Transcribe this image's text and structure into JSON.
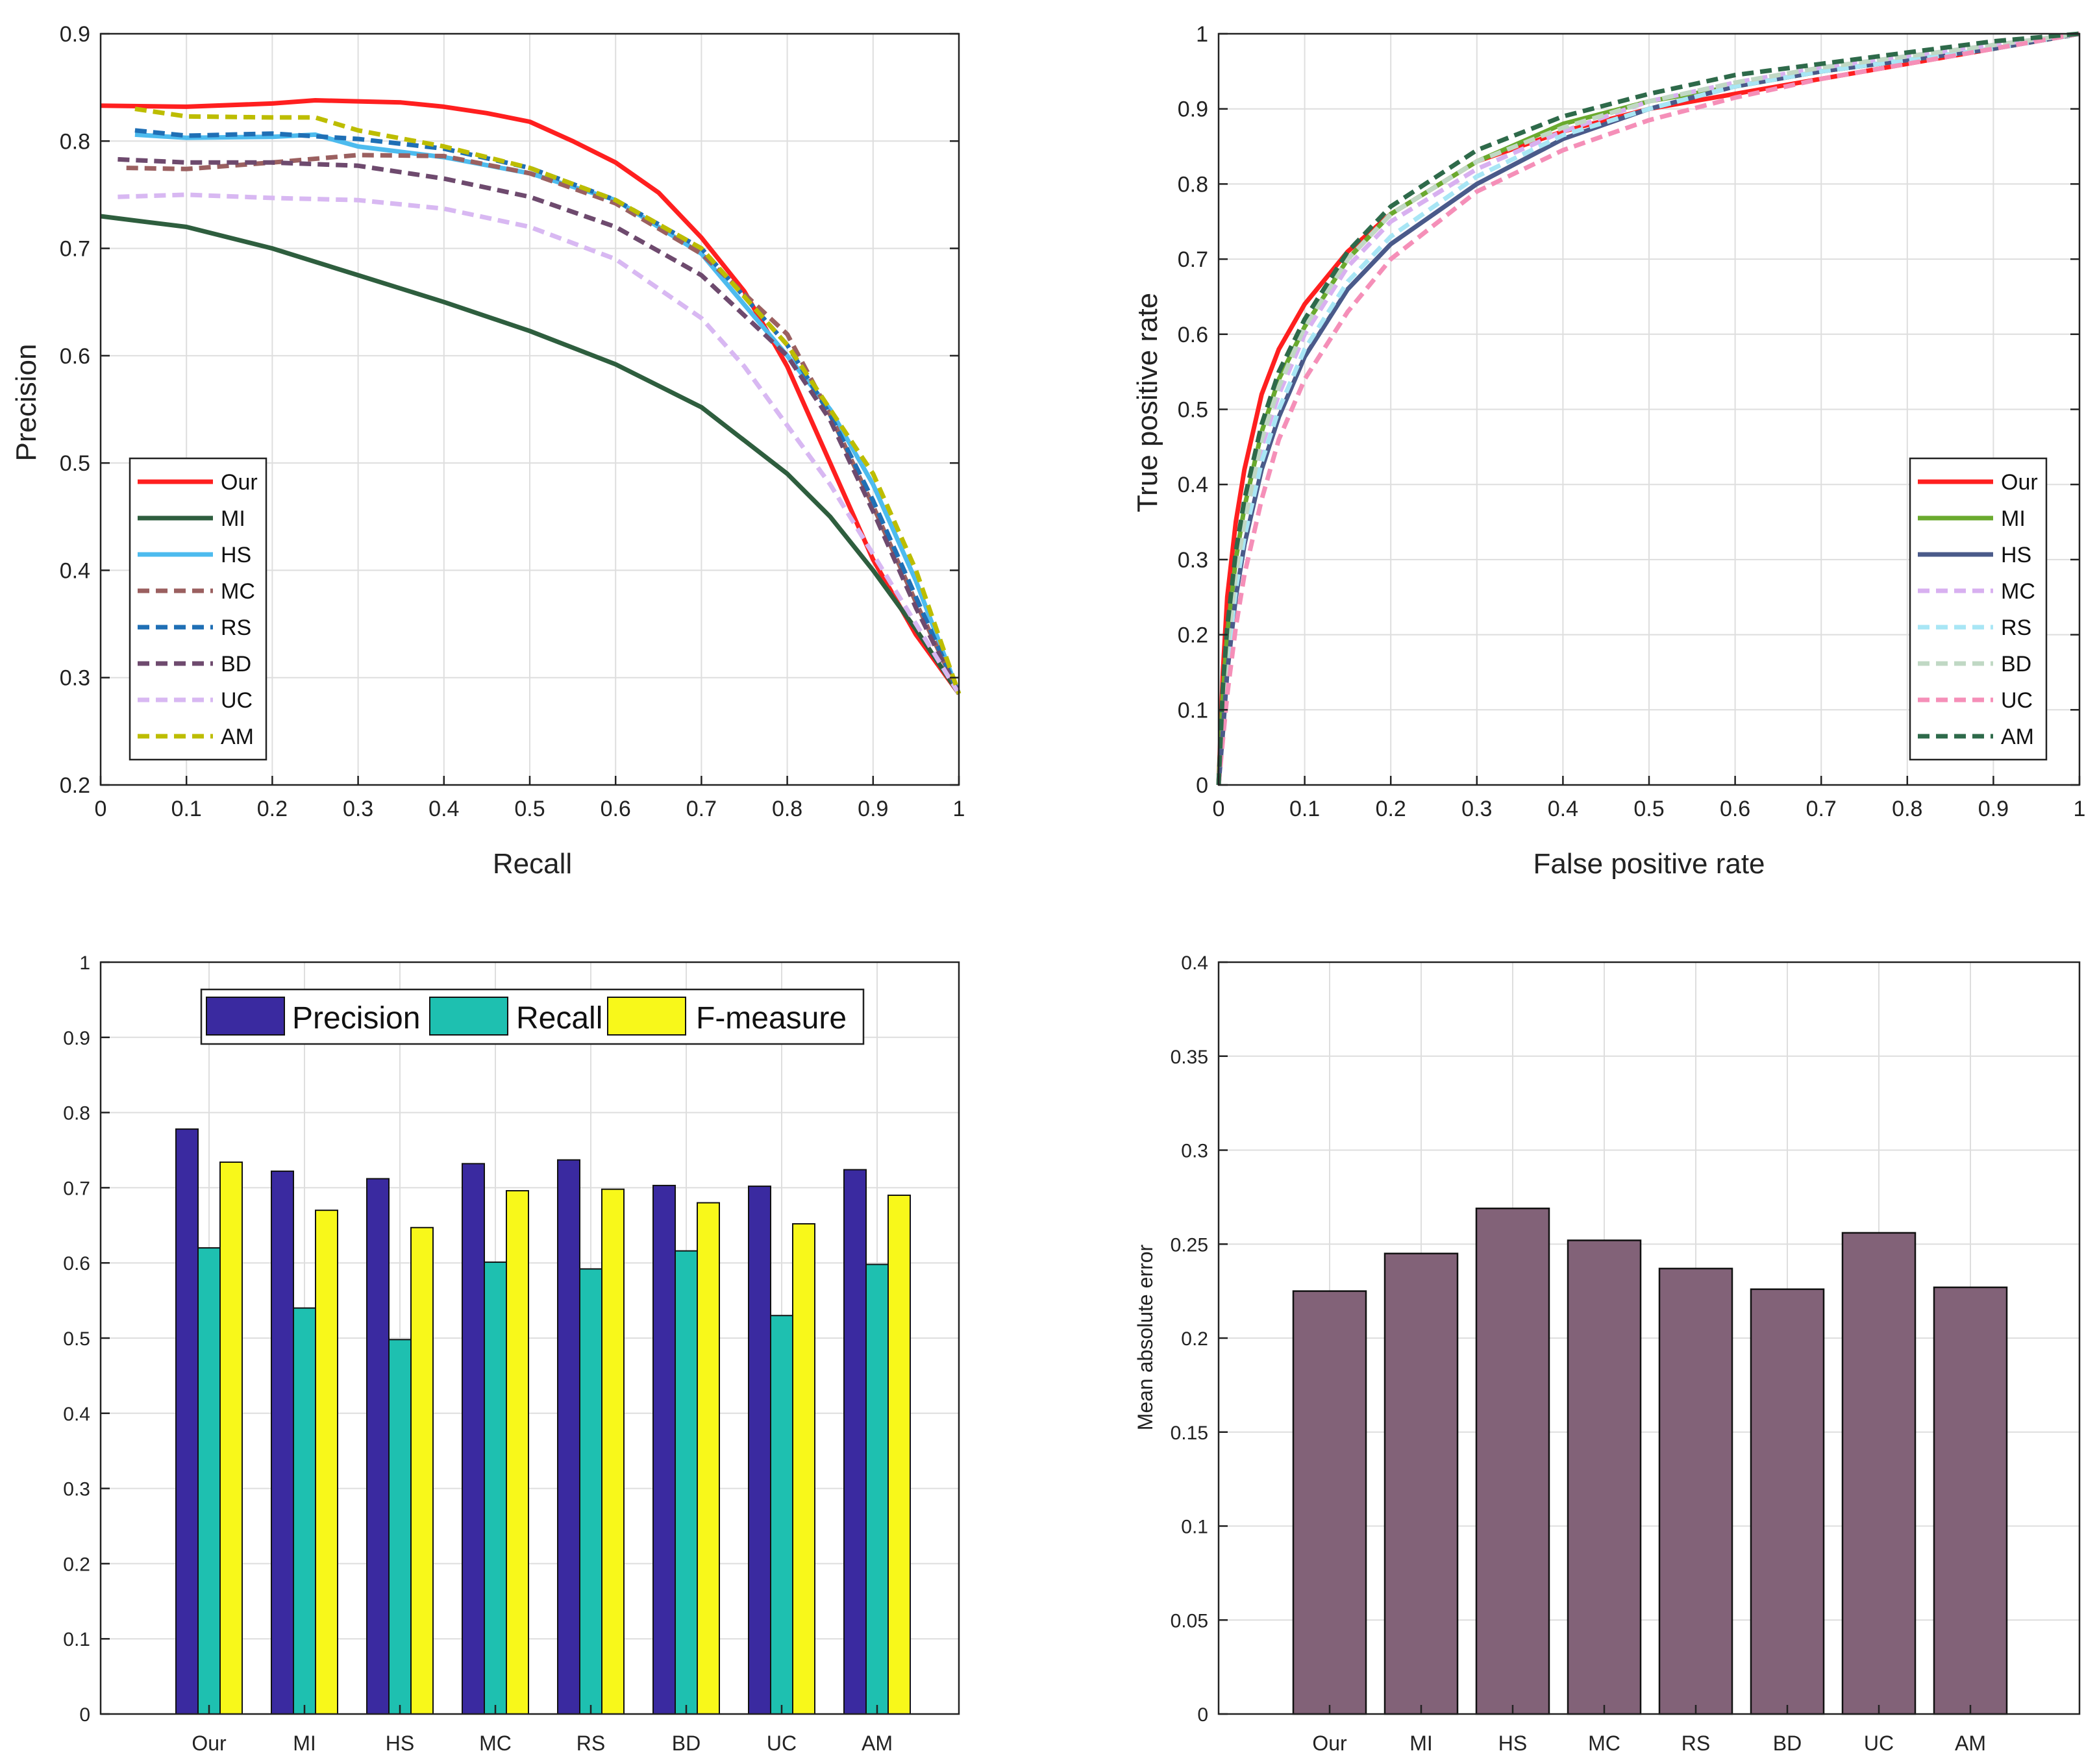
{
  "chart_data": [
    {
      "type": "line",
      "title": "",
      "xlabel": "Recall",
      "ylabel": "Precision",
      "xlim": [
        0,
        1
      ],
      "ylim": [
        0.2,
        0.9
      ],
      "xticks": [
        "0",
        "0.1",
        "0.2",
        "0.3",
        "0.4",
        "0.5",
        "0.6",
        "0.7",
        "0.8",
        "0.9",
        "1"
      ],
      "yticks": [
        "0.2",
        "0.3",
        "0.4",
        "0.5",
        "0.6",
        "0.7",
        "0.8",
        "0.9"
      ],
      "legend_position": "bottom-left",
      "series": [
        {
          "name": "Our",
          "color": "#ff1f1f",
          "dash": "solid",
          "x": [
            0,
            0.1,
            0.2,
            0.25,
            0.3,
            0.35,
            0.4,
            0.45,
            0.5,
            0.55,
            0.6,
            0.65,
            0.7,
            0.75,
            0.8,
            0.85,
            0.9,
            0.95,
            1.0
          ],
          "y": [
            0.833,
            0.832,
            0.835,
            0.838,
            0.837,
            0.836,
            0.832,
            0.826,
            0.818,
            0.8,
            0.78,
            0.752,
            0.71,
            0.66,
            0.59,
            0.5,
            0.41,
            0.34,
            0.285
          ]
        },
        {
          "name": "MI",
          "color": "#2e5e3e",
          "dash": "solid",
          "x": [
            0,
            0.05,
            0.1,
            0.2,
            0.3,
            0.4,
            0.5,
            0.6,
            0.7,
            0.8,
            0.85,
            0.9,
            0.95,
            1.0
          ],
          "y": [
            0.73,
            0.725,
            0.72,
            0.7,
            0.675,
            0.65,
            0.623,
            0.592,
            0.552,
            0.49,
            0.45,
            0.4,
            0.345,
            0.285
          ]
        },
        {
          "name": "HS",
          "color": "#4dbbee",
          "dash": "solid",
          "x": [
            0.04,
            0.1,
            0.2,
            0.25,
            0.3,
            0.4,
            0.5,
            0.6,
            0.7,
            0.8,
            0.85,
            0.9,
            0.95,
            1.0
          ],
          "y": [
            0.806,
            0.803,
            0.804,
            0.806,
            0.795,
            0.785,
            0.77,
            0.745,
            0.695,
            0.6,
            0.55,
            0.48,
            0.39,
            0.285
          ]
        },
        {
          "name": "MC",
          "color": "#9b6060",
          "dash": "dash",
          "x": [
            0.03,
            0.1,
            0.2,
            0.3,
            0.4,
            0.5,
            0.6,
            0.7,
            0.8,
            0.85,
            0.9,
            0.95,
            1.0
          ],
          "y": [
            0.775,
            0.774,
            0.78,
            0.787,
            0.786,
            0.77,
            0.742,
            0.695,
            0.62,
            0.545,
            0.46,
            0.37,
            0.285
          ]
        },
        {
          "name": "RS",
          "color": "#1f6fb5",
          "dash": "dash",
          "x": [
            0.04,
            0.1,
            0.2,
            0.3,
            0.4,
            0.5,
            0.6,
            0.7,
            0.8,
            0.85,
            0.9,
            0.95,
            1.0
          ],
          "y": [
            0.81,
            0.805,
            0.807,
            0.802,
            0.793,
            0.775,
            0.745,
            0.7,
            0.61,
            0.545,
            0.465,
            0.375,
            0.285
          ]
        },
        {
          "name": "BD",
          "color": "#6e4a6e",
          "dash": "dash",
          "x": [
            0.02,
            0.1,
            0.2,
            0.3,
            0.4,
            0.5,
            0.6,
            0.7,
            0.8,
            0.85,
            0.9,
            0.95,
            1.0
          ],
          "y": [
            0.783,
            0.78,
            0.78,
            0.777,
            0.765,
            0.748,
            0.72,
            0.675,
            0.6,
            0.54,
            0.455,
            0.365,
            0.285
          ]
        },
        {
          "name": "UC",
          "color": "#d8b8f2",
          "dash": "dash",
          "x": [
            0.02,
            0.1,
            0.2,
            0.3,
            0.4,
            0.5,
            0.6,
            0.7,
            0.75,
            0.8,
            0.85,
            0.9,
            0.95,
            1.0
          ],
          "y": [
            0.748,
            0.75,
            0.747,
            0.745,
            0.737,
            0.72,
            0.69,
            0.635,
            0.59,
            0.535,
            0.48,
            0.415,
            0.35,
            0.285
          ]
        },
        {
          "name": "AM",
          "color": "#bdbd00",
          "dash": "dash",
          "x": [
            0.04,
            0.1,
            0.2,
            0.25,
            0.3,
            0.4,
            0.5,
            0.6,
            0.7,
            0.8,
            0.85,
            0.9,
            0.95,
            1.0
          ],
          "y": [
            0.83,
            0.823,
            0.822,
            0.822,
            0.81,
            0.795,
            0.775,
            0.745,
            0.7,
            0.61,
            0.55,
            0.49,
            0.4,
            0.285
          ]
        }
      ]
    },
    {
      "type": "line",
      "title": "",
      "xlabel": "False positive rate",
      "ylabel": "True positive rate",
      "xlim": [
        0,
        1
      ],
      "ylim": [
        0,
        1
      ],
      "xticks": [
        "0",
        "0.1",
        "0.2",
        "0.3",
        "0.4",
        "0.5",
        "0.6",
        "0.7",
        "0.8",
        "0.9",
        "1"
      ],
      "yticks": [
        "0",
        "0.1",
        "0.2",
        "0.3",
        "0.4",
        "0.5",
        "0.6",
        "0.7",
        "0.8",
        "0.9",
        "1"
      ],
      "legend_position": "bottom-right",
      "series": [
        {
          "name": "Our",
          "color": "#ff1f1f",
          "dash": "solid",
          "x": [
            0,
            0.005,
            0.01,
            0.02,
            0.03,
            0.05,
            0.07,
            0.1,
            0.15,
            0.2,
            0.3,
            0.4,
            0.5,
            0.6,
            0.7,
            0.8,
            0.9,
            1.0
          ],
          "y": [
            0,
            0.15,
            0.25,
            0.35,
            0.42,
            0.52,
            0.58,
            0.64,
            0.71,
            0.76,
            0.83,
            0.87,
            0.9,
            0.92,
            0.94,
            0.96,
            0.98,
            1.0
          ]
        },
        {
          "name": "MI",
          "color": "#6aaa2e",
          "dash": "solid",
          "x": [
            0,
            0.005,
            0.01,
            0.02,
            0.03,
            0.05,
            0.07,
            0.1,
            0.15,
            0.2,
            0.3,
            0.4,
            0.5,
            0.6,
            0.7,
            0.8,
            0.9,
            1.0
          ],
          "y": [
            0,
            0.12,
            0.2,
            0.3,
            0.37,
            0.47,
            0.54,
            0.61,
            0.7,
            0.76,
            0.83,
            0.88,
            0.91,
            0.93,
            0.95,
            0.965,
            0.98,
            1.0
          ]
        },
        {
          "name": "HS",
          "color": "#4a5a8a",
          "dash": "solid",
          "x": [
            0,
            0.005,
            0.01,
            0.02,
            0.03,
            0.05,
            0.07,
            0.1,
            0.15,
            0.2,
            0.3,
            0.4,
            0.5,
            0.6,
            0.7,
            0.8,
            0.9,
            1.0
          ],
          "y": [
            0,
            0.07,
            0.15,
            0.25,
            0.32,
            0.42,
            0.49,
            0.57,
            0.66,
            0.72,
            0.8,
            0.86,
            0.9,
            0.93,
            0.95,
            0.965,
            0.98,
            1.0
          ]
        },
        {
          "name": "MC",
          "color": "#d8b0f0",
          "dash": "dash",
          "x": [
            0,
            0.005,
            0.01,
            0.02,
            0.03,
            0.05,
            0.07,
            0.1,
            0.15,
            0.2,
            0.3,
            0.4,
            0.5,
            0.6,
            0.7,
            0.8,
            0.9,
            1.0
          ],
          "y": [
            0,
            0.1,
            0.18,
            0.28,
            0.35,
            0.45,
            0.52,
            0.6,
            0.69,
            0.75,
            0.82,
            0.87,
            0.91,
            0.935,
            0.955,
            0.97,
            0.985,
            1.0
          ]
        },
        {
          "name": "RS",
          "color": "#a8e6f5",
          "dash": "dash",
          "x": [
            0,
            0.005,
            0.01,
            0.02,
            0.03,
            0.05,
            0.07,
            0.1,
            0.15,
            0.2,
            0.3,
            0.4,
            0.5,
            0.6,
            0.7,
            0.8,
            0.9,
            1.0
          ],
          "y": [
            0,
            0.09,
            0.16,
            0.26,
            0.33,
            0.43,
            0.5,
            0.58,
            0.67,
            0.73,
            0.81,
            0.865,
            0.9,
            0.93,
            0.95,
            0.965,
            0.98,
            1.0
          ]
        },
        {
          "name": "BD",
          "color": "#c0d8c4",
          "dash": "dash",
          "x": [
            0,
            0.005,
            0.01,
            0.02,
            0.03,
            0.05,
            0.07,
            0.1,
            0.15,
            0.2,
            0.3,
            0.4,
            0.5,
            0.6,
            0.7,
            0.8,
            0.9,
            1.0
          ],
          "y": [
            0,
            0.1,
            0.18,
            0.28,
            0.35,
            0.46,
            0.53,
            0.61,
            0.7,
            0.76,
            0.83,
            0.875,
            0.91,
            0.935,
            0.955,
            0.97,
            0.985,
            1.0
          ]
        },
        {
          "name": "UC",
          "color": "#f58fb8",
          "dash": "dash",
          "x": [
            0,
            0.005,
            0.01,
            0.02,
            0.03,
            0.05,
            0.07,
            0.1,
            0.15,
            0.2,
            0.3,
            0.4,
            0.5,
            0.6,
            0.7,
            0.8,
            0.9,
            1.0
          ],
          "y": [
            0,
            0.06,
            0.12,
            0.21,
            0.28,
            0.38,
            0.46,
            0.54,
            0.63,
            0.7,
            0.79,
            0.845,
            0.885,
            0.915,
            0.94,
            0.96,
            0.98,
            1.0
          ]
        },
        {
          "name": "AM",
          "color": "#2e6a4a",
          "dash": "dash",
          "x": [
            0,
            0.005,
            0.01,
            0.02,
            0.03,
            0.05,
            0.07,
            0.1,
            0.15,
            0.2,
            0.3,
            0.4,
            0.5,
            0.6,
            0.7,
            0.8,
            0.9,
            1.0
          ],
          "y": [
            0,
            0.13,
            0.21,
            0.31,
            0.38,
            0.48,
            0.55,
            0.62,
            0.71,
            0.77,
            0.845,
            0.89,
            0.92,
            0.945,
            0.96,
            0.975,
            0.99,
            1.0
          ]
        }
      ]
    },
    {
      "type": "bar",
      "title": "",
      "xlabel": "",
      "ylabel": "",
      "ylim": [
        0,
        1
      ],
      "yticks": [
        "0",
        "0.1",
        "0.2",
        "0.3",
        "0.4",
        "0.5",
        "0.6",
        "0.7",
        "0.8",
        "0.9",
        "1"
      ],
      "categories": [
        "Our",
        "MI",
        "HS",
        "MC",
        "RS",
        "BD",
        "UC",
        "AM"
      ],
      "legend_position": "top-center",
      "series": [
        {
          "name": "Precision",
          "color": "#3a2aa0",
          "values": [
            0.778,
            0.722,
            0.712,
            0.732,
            0.737,
            0.703,
            0.702,
            0.724
          ]
        },
        {
          "name": "Recall",
          "color": "#1ec0b0",
          "values": [
            0.62,
            0.54,
            0.498,
            0.601,
            0.592,
            0.616,
            0.53,
            0.598
          ]
        },
        {
          "name": "F-measure",
          "color": "#f8f81a",
          "values": [
            0.734,
            0.67,
            0.647,
            0.696,
            0.698,
            0.68,
            0.652,
            0.69
          ]
        }
      ]
    },
    {
      "type": "bar",
      "title": "",
      "xlabel": "",
      "ylabel": "Mean absolute error",
      "ylim": [
        0,
        0.4
      ],
      "yticks": [
        "0",
        "0.05",
        "0.1",
        "0.15",
        "0.2",
        "0.25",
        "0.3",
        "0.35",
        "0.4"
      ],
      "categories": [
        "Our",
        "MI",
        "HS",
        "MC",
        "RS",
        "BD",
        "UC",
        "AM"
      ],
      "color": "#826278",
      "values": [
        0.225,
        0.245,
        0.269,
        0.252,
        0.237,
        0.226,
        0.256,
        0.227
      ]
    }
  ]
}
